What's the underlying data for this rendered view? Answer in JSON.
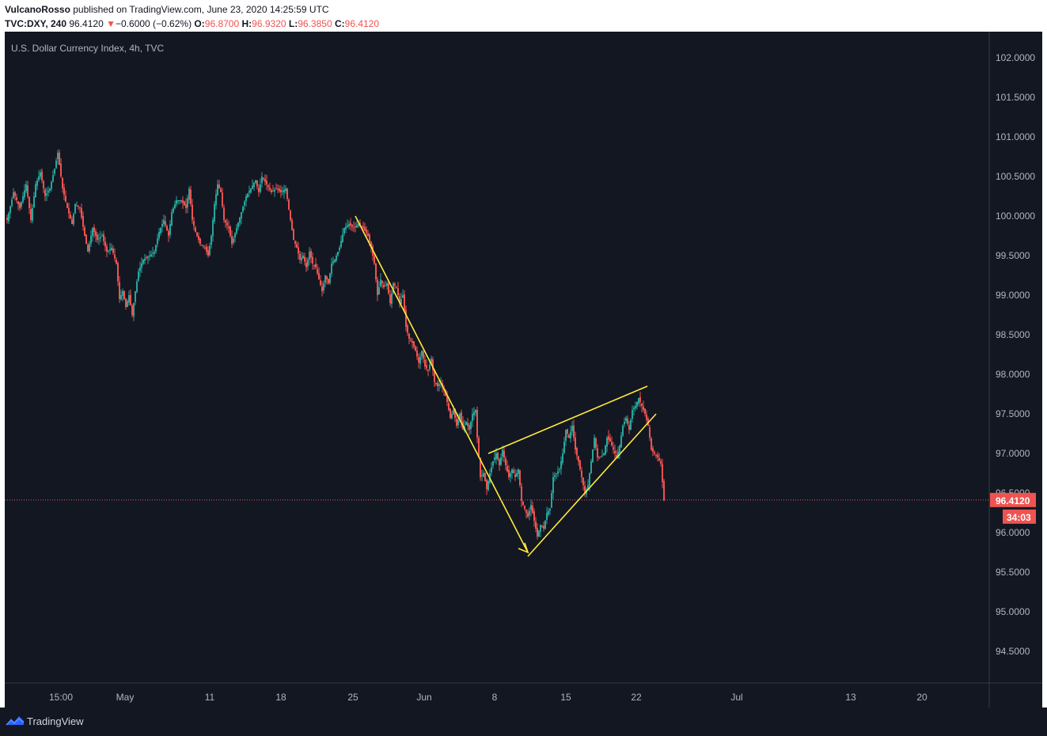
{
  "header": {
    "author": "VulcanoRosso",
    "published_text": "published on TradingView.com, June 23, 2020 14:25:59 UTC",
    "symbol": "TVC:DXY, 240",
    "last": "96.4120",
    "change_arrow": "▼",
    "change": "−0.6000 (−0.62%)",
    "o_label": "O:",
    "o_value": "96.8700",
    "h_label": "H:",
    "h_value": "96.9320",
    "l_label": "L:",
    "l_value": "96.3850",
    "c_label": "C:",
    "c_value": "96.4120"
  },
  "chart_data": {
    "type": "candlestick",
    "title": "U.S. Dollar Currency Index, 4h, TVC",
    "y_ticks": [
      "102.0000",
      "101.5000",
      "101.0000",
      "100.5000",
      "100.0000",
      "99.5000",
      "99.0000",
      "98.5000",
      "98.0000",
      "97.5000",
      "97.0000",
      "96.5000",
      "96.0000",
      "95.5000",
      "95.0000",
      "94.5000"
    ],
    "ylim": [
      94.1,
      102.3
    ],
    "x_ticks": [
      "15:00",
      "May",
      "11",
      "18",
      "25",
      "Jun",
      "8",
      "15",
      "22",
      "Jul",
      "13",
      "20"
    ],
    "last_price_label": "96.4120",
    "countdown_label": "34:03",
    "colors": {
      "up": "#26a69a",
      "down": "#ef5350",
      "drawing": "#ffeb3b",
      "background": "#131722",
      "grid_text": "#b2b5be"
    },
    "price_path": [
      [
        0,
        99.95
      ],
      [
        8,
        100.3
      ],
      [
        16,
        100.1
      ],
      [
        24,
        100.4
      ],
      [
        30,
        99.95
      ],
      [
        36,
        100.4
      ],
      [
        42,
        100.55
      ],
      [
        48,
        100.25
      ],
      [
        54,
        100.35
      ],
      [
        60,
        100.6
      ],
      [
        64,
        100.8
      ],
      [
        70,
        100.35
      ],
      [
        76,
        100.1
      ],
      [
        82,
        99.9
      ],
      [
        86,
        100.15
      ],
      [
        92,
        100.1
      ],
      [
        98,
        99.75
      ],
      [
        102,
        99.55
      ],
      [
        108,
        99.85
      ],
      [
        114,
        99.7
      ],
      [
        120,
        99.75
      ],
      [
        126,
        99.55
      ],
      [
        132,
        99.6
      ],
      [
        138,
        99.4
      ],
      [
        142,
        98.95
      ],
      [
        146,
        99.05
      ],
      [
        150,
        98.85
      ],
      [
        154,
        99.0
      ],
      [
        158,
        98.75
      ],
      [
        162,
        99.05
      ],
      [
        166,
        99.3
      ],
      [
        172,
        99.45
      ],
      [
        180,
        99.5
      ],
      [
        186,
        99.55
      ],
      [
        192,
        99.8
      ],
      [
        198,
        99.95
      ],
      [
        204,
        99.75
      ],
      [
        208,
        100.05
      ],
      [
        214,
        100.2
      ],
      [
        220,
        100.2
      ],
      [
        226,
        100.1
      ],
      [
        230,
        100.35
      ],
      [
        234,
        99.95
      ],
      [
        238,
        99.8
      ],
      [
        244,
        99.65
      ],
      [
        250,
        99.6
      ],
      [
        254,
        99.5
      ],
      [
        258,
        99.75
      ],
      [
        262,
        100.15
      ],
      [
        266,
        100.4
      ],
      [
        270,
        100.3
      ],
      [
        274,
        99.95
      ],
      [
        280,
        99.85
      ],
      [
        284,
        99.65
      ],
      [
        290,
        99.85
      ],
      [
        296,
        100.05
      ],
      [
        302,
        100.25
      ],
      [
        308,
        100.35
      ],
      [
        314,
        100.45
      ],
      [
        318,
        100.3
      ],
      [
        322,
        100.5
      ],
      [
        328,
        100.4
      ],
      [
        334,
        100.3
      ],
      [
        340,
        100.35
      ],
      [
        346,
        100.3
      ],
      [
        352,
        100.35
      ],
      [
        358,
        99.95
      ],
      [
        362,
        99.7
      ],
      [
        366,
        99.6
      ],
      [
        370,
        99.45
      ],
      [
        374,
        99.5
      ],
      [
        378,
        99.35
      ],
      [
        382,
        99.55
      ],
      [
        386,
        99.4
      ],
      [
        390,
        99.35
      ],
      [
        394,
        99.2
      ],
      [
        398,
        99.05
      ],
      [
        402,
        99.25
      ],
      [
        406,
        99.15
      ],
      [
        410,
        99.4
      ],
      [
        414,
        99.45
      ],
      [
        420,
        99.6
      ],
      [
        426,
        99.85
      ],
      [
        432,
        99.9
      ],
      [
        438,
        99.85
      ],
      [
        444,
        99.9
      ],
      [
        450,
        99.85
      ],
      [
        456,
        99.75
      ],
      [
        460,
        99.6
      ],
      [
        464,
        99.4
      ],
      [
        468,
        99.0
      ],
      [
        472,
        99.2
      ],
      [
        476,
        99.1
      ],
      [
        480,
        99.15
      ],
      [
        484,
        98.9
      ],
      [
        488,
        99.15
      ],
      [
        492,
        99.1
      ],
      [
        496,
        98.9
      ],
      [
        500,
        99.0
      ],
      [
        504,
        98.6
      ],
      [
        508,
        98.45
      ],
      [
        512,
        98.4
      ],
      [
        516,
        98.3
      ],
      [
        520,
        98.15
      ],
      [
        524,
        98.3
      ],
      [
        528,
        98.1
      ],
      [
        532,
        98.05
      ],
      [
        536,
        98.2
      ],
      [
        540,
        97.9
      ],
      [
        544,
        97.85
      ],
      [
        548,
        97.9
      ],
      [
        552,
        97.8
      ],
      [
        556,
        97.65
      ],
      [
        560,
        97.45
      ],
      [
        564,
        97.55
      ],
      [
        568,
        97.35
      ],
      [
        572,
        97.5
      ],
      [
        576,
        97.3
      ],
      [
        580,
        97.4
      ],
      [
        584,
        97.3
      ],
      [
        588,
        97.5
      ],
      [
        592,
        97.55
      ],
      [
        594,
        97.2
      ],
      [
        598,
        96.7
      ],
      [
        602,
        96.75
      ],
      [
        606,
        96.55
      ],
      [
        610,
        96.75
      ],
      [
        614,
        96.9
      ],
      [
        618,
        97.0
      ],
      [
        622,
        96.85
      ],
      [
        626,
        97.05
      ],
      [
        630,
        96.85
      ],
      [
        634,
        96.7
      ],
      [
        638,
        96.8
      ],
      [
        642,
        96.7
      ],
      [
        646,
        96.8
      ],
      [
        650,
        96.4
      ],
      [
        654,
        96.3
      ],
      [
        658,
        96.2
      ],
      [
        662,
        96.35
      ],
      [
        666,
        96.15
      ],
      [
        670,
        95.95
      ],
      [
        674,
        96.1
      ],
      [
        678,
        96.05
      ],
      [
        682,
        96.25
      ],
      [
        686,
        96.3
      ],
      [
        690,
        96.7
      ],
      [
        694,
        96.75
      ],
      [
        698,
        96.8
      ],
      [
        702,
        97.0
      ],
      [
        706,
        97.3
      ],
      [
        710,
        97.2
      ],
      [
        714,
        97.35
      ],
      [
        718,
        97.05
      ],
      [
        722,
        96.9
      ],
      [
        726,
        96.7
      ],
      [
        730,
        96.5
      ],
      [
        734,
        96.6
      ],
      [
        738,
        96.9
      ],
      [
        742,
        97.2
      ],
      [
        746,
        96.95
      ],
      [
        750,
        96.95
      ],
      [
        754,
        97.0
      ],
      [
        758,
        97.2
      ],
      [
        762,
        97.15
      ],
      [
        766,
        97.05
      ],
      [
        770,
        96.95
      ],
      [
        774,
        97.1
      ],
      [
        778,
        97.35
      ],
      [
        782,
        97.45
      ],
      [
        786,
        97.3
      ],
      [
        790,
        97.55
      ],
      [
        794,
        97.6
      ],
      [
        798,
        97.7
      ],
      [
        802,
        97.6
      ],
      [
        806,
        97.5
      ],
      [
        810,
        97.35
      ],
      [
        814,
        97.05
      ],
      [
        818,
        97.0
      ],
      [
        822,
        96.95
      ],
      [
        826,
        96.87
      ],
      [
        830,
        96.41
      ]
    ],
    "drawings": [
      {
        "name": "falling-trend-line",
        "points": [
          [
            449,
            100.0
          ],
          [
            667,
            95.75
          ]
        ]
      },
      {
        "name": "wedge-upper-line",
        "points": [
          [
            617,
            97.0
          ],
          [
            818,
            97.85
          ]
        ]
      },
      {
        "name": "wedge-lower-line",
        "points": [
          [
            667,
            95.7
          ],
          [
            829,
            97.5
          ]
        ]
      }
    ]
  },
  "footer": {
    "brand": "TradingView",
    "brand_icon": "tradingview-logo-icon"
  }
}
